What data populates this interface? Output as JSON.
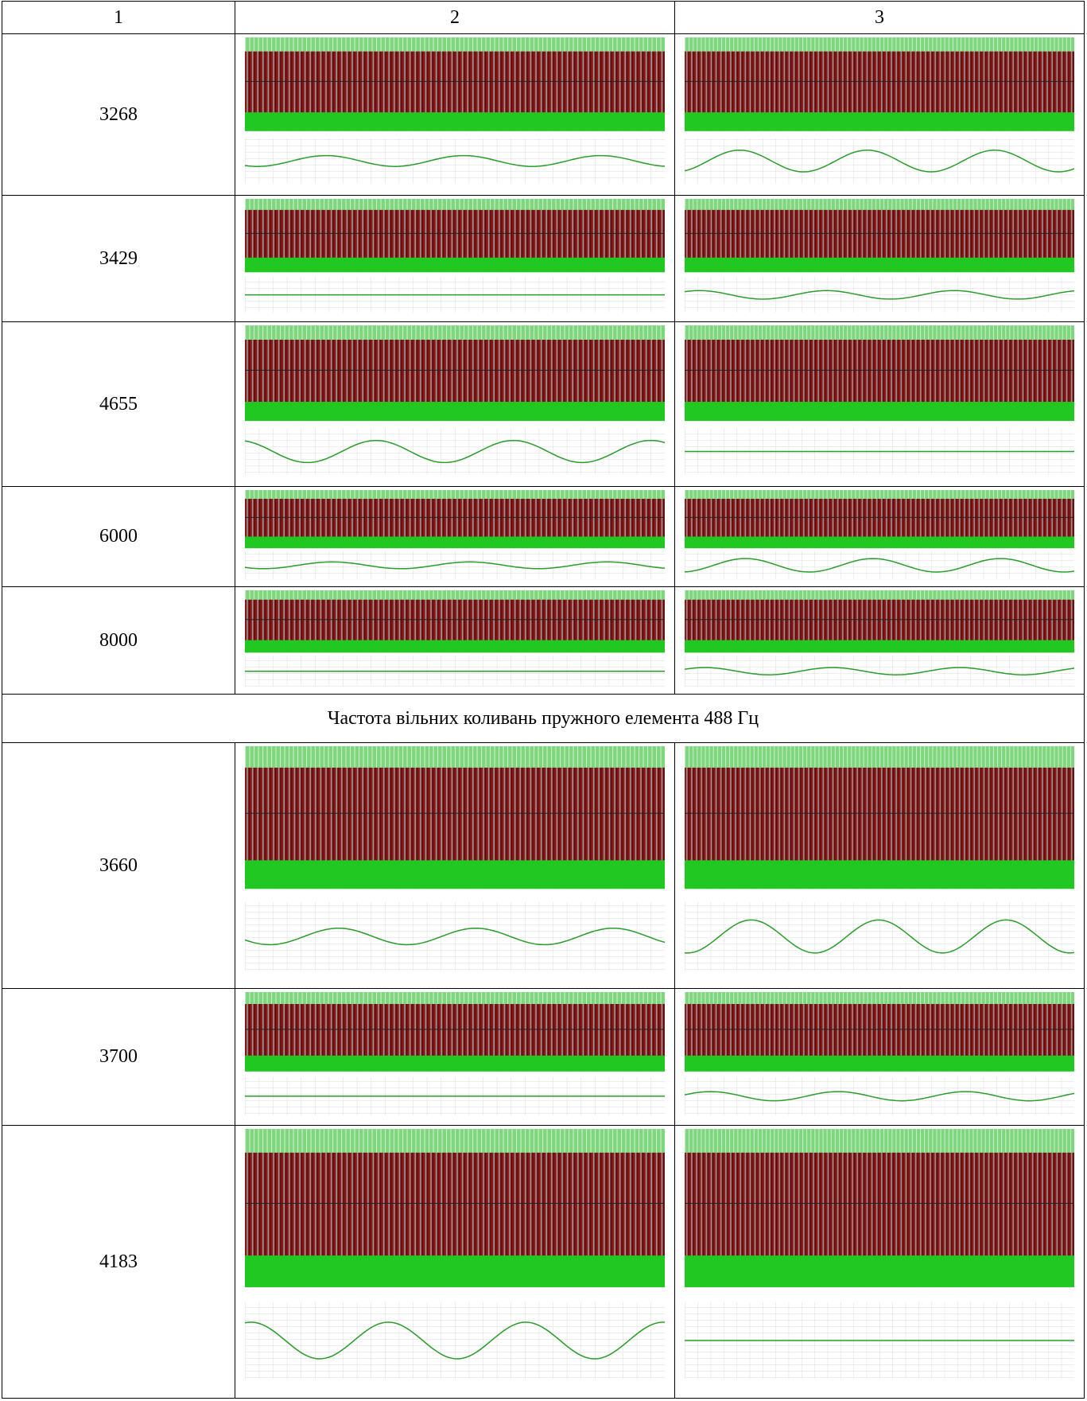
{
  "table": {
    "header": [
      "1",
      "2",
      "3"
    ],
    "rows": [
      {
        "label": "3268"
      },
      {
        "label": "3429"
      },
      {
        "label": "4655"
      },
      {
        "label": "6000"
      },
      {
        "label": "8000"
      },
      {
        "section": "Частота вільних коливань пружного елемента 488 Гц"
      },
      {
        "label": "3660"
      },
      {
        "label": "3700"
      },
      {
        "label": "4183"
      }
    ]
  }
}
